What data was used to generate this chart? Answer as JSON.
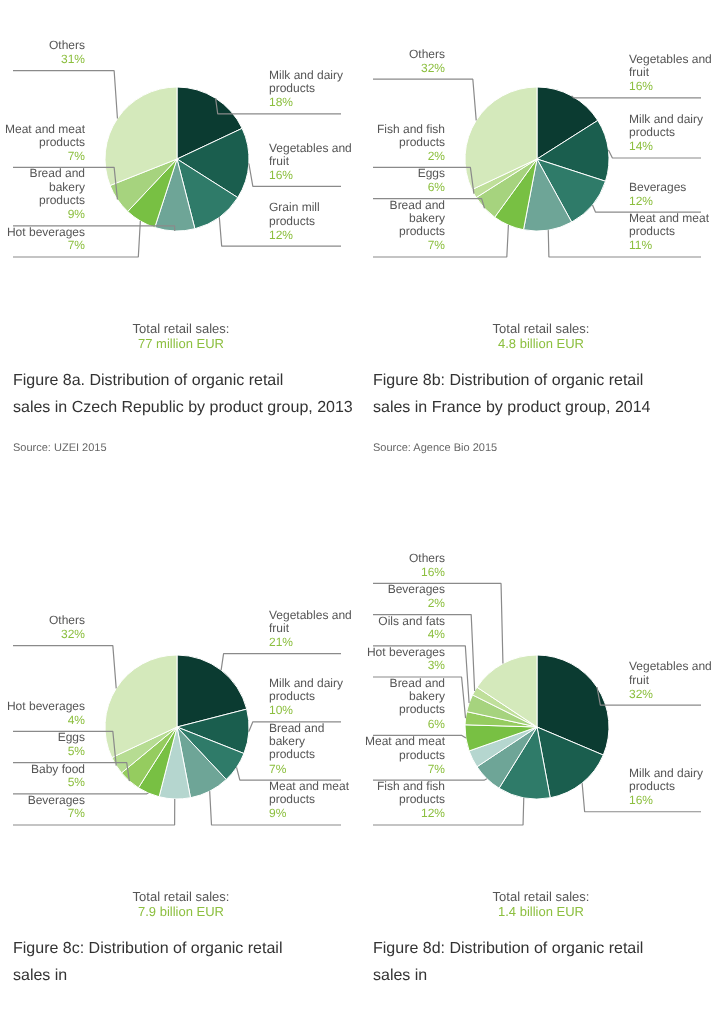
{
  "chart_data": [
    {
      "type": "pie",
      "title": "Figure 8a. Distribution of organic retail sales in Czech Republic by product group, 2013",
      "categories": [
        "Milk and dairy products",
        "Vegetables and fruit",
        "Grain mill products",
        "Bread and bakery products",
        "Hot beverages",
        "Meat and meat products",
        "Others"
      ],
      "values": [
        18,
        16,
        12,
        9,
        7,
        7,
        31
      ],
      "value_labels": [
        "18%",
        "16%",
        "12%",
        "9%",
        "7%",
        "7%",
        "31%"
      ],
      "colors": [
        "#0b3b31",
        "#1a5e4e",
        "#2f7b69",
        "#6ea597",
        "#78c043",
        "#a6d37e",
        "#d4e9bb"
      ],
      "annotations": [
        "Total retail sales:",
        "77 million EUR",
        "Source: UZEI 2015"
      ]
    },
    {
      "type": "pie",
      "title": "Figure 8b: Distribution of organic retail sales in France by product group, 2014",
      "categories": [
        "Vegetables and fruit",
        "Milk and dairy products",
        "Beverages",
        "Meat and meat products",
        "Bread and bakery products",
        "Eggs",
        "Fish and fish products",
        "Others"
      ],
      "values": [
        16,
        14,
        12,
        11,
        7,
        6,
        2,
        32
      ],
      "value_labels": [
        "16%",
        "14%",
        "12%",
        "11%",
        "7%",
        "6%",
        "2%",
        "32%"
      ],
      "colors": [
        "#0b3b31",
        "#1a5e4e",
        "#2f7b69",
        "#6ea597",
        "#78c043",
        "#a6d37e",
        "#bfdf9a",
        "#d4e9bb"
      ],
      "annotations": [
        "Total retail sales:",
        "4.8 billion EUR",
        "Source: Agence Bio 2015"
      ]
    },
    {
      "type": "pie",
      "title": "Figure 8c: Distribution of organic retail sales in",
      "categories": [
        "Vegetables and fruit",
        "Milk and dairy products",
        "Bread and bakery products",
        "Meat and meat products",
        "Beverages",
        "Baby food",
        "Eggs",
        "Hot beverages",
        "Others"
      ],
      "values": [
        21,
        10,
        7,
        9,
        7,
        5,
        5,
        4,
        32
      ],
      "value_labels": [
        "21%",
        "10%",
        "7%",
        "9%",
        "7%",
        "5%",
        "5%",
        "4%",
        "32%"
      ],
      "colors": [
        "#0b3b31",
        "#1a5e4e",
        "#2f7b69",
        "#6ea597",
        "#b5d6cf",
        "#78c043",
        "#95cc5f",
        "#b6dc92",
        "#d4e9bb"
      ],
      "annotations": [
        "Total retail sales:",
        "7.9 billion EUR"
      ]
    },
    {
      "type": "pie",
      "title": "Figure 8d: Distribution of organic retail sales in",
      "categories": [
        "Vegetables and fruit",
        "Milk and dairy products",
        "Fish and fish products",
        "Meat and meat products",
        null,
        "Bread and bakery products",
        "Hot beverages",
        "Oils and fats",
        "Beverages",
        "Others"
      ],
      "values": [
        32,
        16,
        12,
        7,
        4,
        6,
        3,
        4,
        2,
        16
      ],
      "value_labels": [
        "32%",
        "16%",
        "12%",
        "7%",
        null,
        "6%",
        "3%",
        "4%",
        "2%",
        "16%"
      ],
      "colors": [
        "#0b3b31",
        "#1a5e4e",
        "#2f7b69",
        "#6ea597",
        "#b5d6cf",
        "#78c043",
        "#95cc5f",
        "#a6d37e",
        "#bfdf9a",
        "#d4e9bb"
      ],
      "annotations": [
        "Total retail sales:",
        "1.4 billion EUR"
      ]
    }
  ]
}
